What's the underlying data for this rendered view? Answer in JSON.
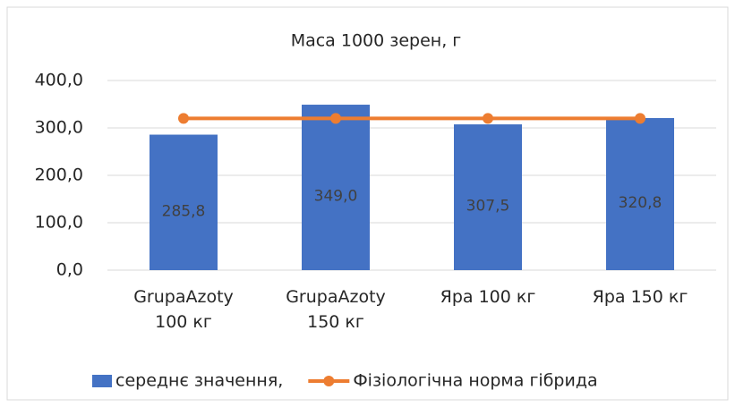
{
  "chart_data": {
    "type": "bar",
    "title": "Маса 1000 зерен, г",
    "categories": [
      "GrupaAzoty 100 кг",
      "GrupaAzoty 150 кг",
      "Яра 100 кг",
      "Яра 150 кг"
    ],
    "series": [
      {
        "name": "середнє значення,",
        "type": "bar",
        "color": "#4472c4",
        "values": [
          285.8,
          349.0,
          307.5,
          320.8
        ],
        "value_labels": [
          "285,8",
          "349,0",
          "307,5",
          "320,8"
        ]
      },
      {
        "name": "Фізіологічна норма гібрида",
        "type": "line",
        "color": "#ed7d31",
        "values": [
          320,
          320,
          320,
          320
        ]
      }
    ],
    "ylim": [
      0,
      400
    ],
    "yticks": [
      {
        "value": 0,
        "label": "0,0"
      },
      {
        "value": 100,
        "label": "100,0"
      },
      {
        "value": 200,
        "label": "200,0"
      },
      {
        "value": 300,
        "label": "300,0"
      },
      {
        "value": 400,
        "label": "400,0"
      }
    ],
    "grid": true,
    "legend": "bottom"
  }
}
